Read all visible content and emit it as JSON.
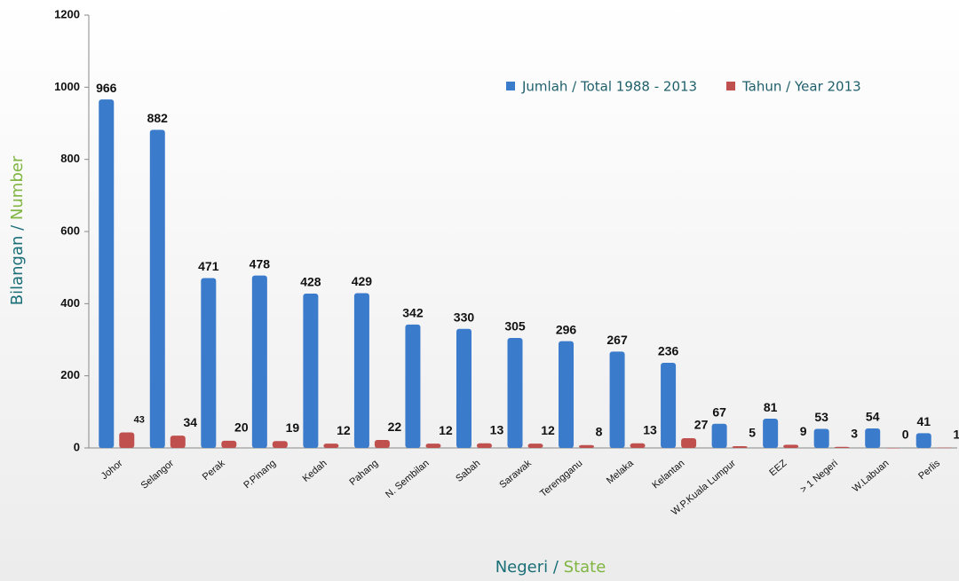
{
  "chart_data": {
    "type": "bar",
    "categories": [
      "Johor",
      "Selangor",
      "Perak",
      "P.Pinang",
      "Kedah",
      "Pahang",
      "N. Sembilan",
      "Sabah",
      "Sarawak",
      "Terengganu",
      "Melaka",
      "Kelantan",
      "W.P.Kuala Lumpur",
      "EEZ",
      "> 1 Negeri",
      "W.Labuan",
      "Perlis"
    ],
    "series": [
      {
        "name": "Jumlah / Total 1988 - 2013",
        "color": "#3b7bcc",
        "values": [
          966,
          882,
          471,
          478,
          428,
          429,
          342,
          330,
          305,
          296,
          267,
          236,
          67,
          81,
          53,
          54,
          41
        ]
      },
      {
        "name": "Tahun / Year 2013",
        "color": "#c0504d",
        "values": [
          43,
          34,
          20,
          19,
          12,
          22,
          12,
          13,
          12,
          8,
          13,
          27,
          5,
          9,
          3,
          0,
          1
        ]
      }
    ],
    "ylim": [
      0,
      1200
    ],
    "yticks": [
      0,
      200,
      400,
      600,
      800,
      1000,
      1200
    ],
    "x_label": [
      "Negeri /",
      "State"
    ],
    "y_label": [
      "Bilangan /",
      "Number"
    ]
  }
}
